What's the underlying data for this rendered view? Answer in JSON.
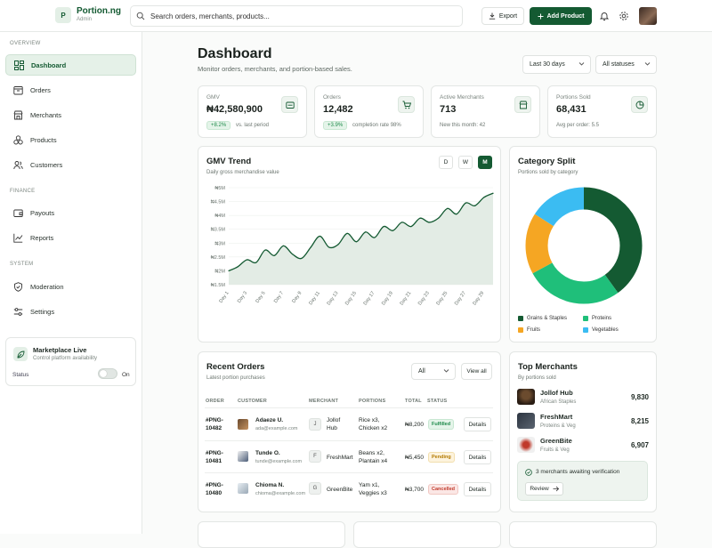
{
  "brand": {
    "logo_letter": "P",
    "name": "Portion.ng",
    "role": "Admin"
  },
  "search": {
    "placeholder": "Search orders, merchants, products..."
  },
  "toolbar": {
    "export_label": "Export",
    "add_label": "Add Product"
  },
  "sidebar": {
    "sections": [
      {
        "label": "OVERVIEW"
      },
      {
        "label": "FINANCE"
      },
      {
        "label": "SYSTEM"
      }
    ],
    "items": [
      {
        "label": "Dashboard",
        "icon": "grid-icon",
        "active": true
      },
      {
        "label": "Orders",
        "icon": "box-icon"
      },
      {
        "label": "Merchants",
        "icon": "store-icon"
      },
      {
        "label": "Products",
        "icon": "cubes-icon"
      },
      {
        "label": "Customers",
        "icon": "users-icon"
      },
      {
        "label": "Payouts",
        "icon": "wallet-icon"
      },
      {
        "label": "Reports",
        "icon": "chart-line-icon"
      },
      {
        "label": "Moderation",
        "icon": "shield-icon"
      },
      {
        "label": "Settings",
        "icon": "sliders-icon"
      }
    ],
    "live": {
      "title": "Marketplace Live",
      "subtitle": "Control platform availability",
      "status_label": "Status",
      "toggle_state": "On"
    }
  },
  "header": {
    "title": "Dashboard",
    "subtitle": "Monitor orders, merchants, and portion-based sales.",
    "period": "Last 30 days",
    "status_filter": "All statuses"
  },
  "kpis": [
    {
      "label": "GMV",
      "value": "₦42,580,900",
      "badge": "+8.2%",
      "note": "vs. last period",
      "icon": "wallet-icon"
    },
    {
      "label": "Orders",
      "value": "12,482",
      "badge": "+3.9%",
      "note": "completion rate 98%",
      "icon": "cart-icon"
    },
    {
      "label": "Active Merchants",
      "value": "713",
      "note": "New this month: 42",
      "icon": "store-icon"
    },
    {
      "label": "Portions Sold",
      "value": "68,431",
      "note": "Avg per order: 5.5",
      "icon": "pie-icon"
    }
  ],
  "gmv_card": {
    "title": "GMV Trend",
    "subtitle": "Daily gross merchandise value",
    "ranges": [
      "D",
      "W",
      "M"
    ],
    "active_range": "M"
  },
  "category_card": {
    "title": "Category Split",
    "subtitle": "Portions sold by category"
  },
  "chart_data": [
    {
      "type": "area",
      "title": "GMV Trend",
      "x": [
        "Day 1",
        "Day 2",
        "Day 3",
        "Day 4",
        "Day 5",
        "Day 6",
        "Day 7",
        "Day 8",
        "Day 9",
        "Day 10",
        "Day 11",
        "Day 12",
        "Day 13",
        "Day 14",
        "Day 15",
        "Day 16",
        "Day 17",
        "Day 18",
        "Day 19",
        "Day 20",
        "Day 21",
        "Day 22",
        "Day 23",
        "Day 24",
        "Day 25",
        "Day 26",
        "Day 27",
        "Day 28",
        "Day 29",
        "Day 30"
      ],
      "x_tick_labels": [
        "Day 1",
        "Day 3",
        "Day 5",
        "Day 7",
        "Day 9",
        "Day 11",
        "Day 13",
        "Day 15",
        "Day 17",
        "Day 19",
        "Day 21",
        "Day 23",
        "Day 25",
        "Day 27",
        "Day 29"
      ],
      "y_tick_labels": [
        "₦5M",
        "₦4.5M",
        "₦4M",
        "₦3.5M",
        "₦3M",
        "₦2.5M",
        "₦2M",
        "₦1.5M"
      ],
      "values": [
        2.0,
        2.15,
        2.4,
        2.3,
        2.75,
        2.55,
        2.9,
        2.6,
        2.45,
        2.85,
        3.25,
        2.85,
        2.95,
        3.35,
        3.05,
        3.4,
        3.2,
        3.6,
        3.45,
        3.75,
        3.6,
        3.9,
        3.75,
        3.9,
        4.25,
        4.05,
        4.45,
        4.35,
        4.65,
        4.8
      ],
      "ylim": [
        1.5,
        5.0
      ],
      "y_unit": "₦M",
      "grid": true
    },
    {
      "type": "pie",
      "title": "Category Split",
      "categories": [
        "Grains & Staples",
        "Proteins",
        "Fruits",
        "Vegetables"
      ],
      "values": [
        40,
        27,
        17,
        16
      ],
      "colors": [
        "#145a32",
        "#1fbf7a",
        "#f5a623",
        "#3bbcf2"
      ],
      "legend": "bottom"
    }
  ],
  "orders": {
    "title": "Recent Orders",
    "subtitle": "Latest portion purchases",
    "filter": "All",
    "view_all": "View all",
    "columns": [
      "ORDER",
      "CUSTOMER",
      "MERCHANT",
      "PORTIONS",
      "TOTAL",
      "STATUS"
    ],
    "rows": [
      {
        "id_line1": "#PNG-",
        "id_line2": "10482",
        "customer": "Adaeze U.",
        "email": "ada@example.com",
        "merchant_initial": "J",
        "merchant_line1": "Jollof",
        "merchant_line2": "Hub",
        "portions_line1": "Rice x3,",
        "portions_line2": "Chicken x2",
        "total": "₦8,200",
        "status": "Fulfilled",
        "action": "Details"
      },
      {
        "id_line1": "#PNG-",
        "id_line2": "10481",
        "customer": "Tunde O.",
        "email": "tunde@example.com",
        "merchant_initial": "F",
        "merchant_line1": "FreshMart",
        "merchant_line2": "",
        "portions_line1": "Beans x2,",
        "portions_line2": "Plantain x4",
        "total": "₦5,450",
        "status": "Pending",
        "action": "Details"
      },
      {
        "id_line1": "#PNG-",
        "id_line2": "10480",
        "customer": "Chioma N.",
        "email": "chioma@example.com",
        "merchant_initial": "G",
        "merchant_line1": "GreenBite",
        "merchant_line2": "",
        "portions_line1": "Yam x1,",
        "portions_line2": "Veggies x3",
        "total": "₦3,700",
        "status": "Cancelled",
        "action": "Details"
      }
    ]
  },
  "merchants": {
    "title": "Top Merchants",
    "subtitle": "By portions sold",
    "list": [
      {
        "name": "Jollof Hub",
        "category": "African Staples",
        "value": "9,830"
      },
      {
        "name": "FreshMart",
        "category": "Proteins & Veg",
        "value": "8,215"
      },
      {
        "name": "GreenBite",
        "category": "Fruits & Veg",
        "value": "6,907"
      }
    ],
    "verify_text": "3 merchants awaiting verification",
    "review_label": "Review"
  }
}
